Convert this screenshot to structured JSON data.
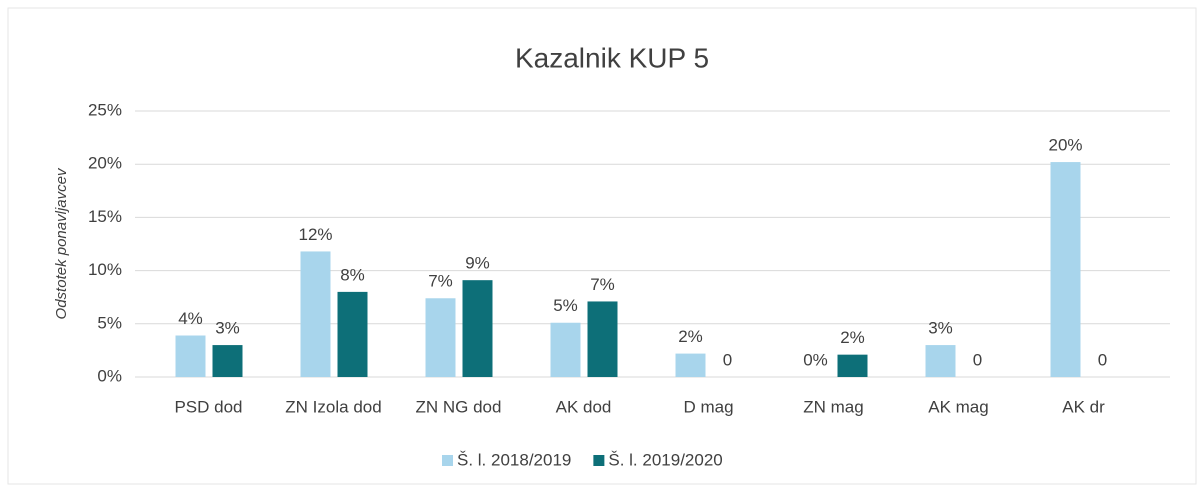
{
  "chart_data": {
    "type": "bar",
    "title": "Kazalnik KUP 5",
    "y_label": "Odstotek ponavljavcev",
    "categories": [
      "PSD dod",
      "ZN Izola dod",
      "ZN NG dod",
      "AK dod",
      "D mag",
      "ZN mag",
      "AK mag",
      "AK dr"
    ],
    "series": [
      {
        "name": "Š. l. 2018/2019",
        "color": "#a8d5ec",
        "values": [
          3.9,
          11.8,
          7.4,
          5.1,
          2.2,
          0,
          3.0,
          20.2
        ],
        "value_labels": [
          "4%",
          "12%",
          "7%",
          "5%",
          "2%",
          "0%",
          "3%",
          "20%"
        ]
      },
      {
        "name": "Š. l. 2019/2020",
        "color": "#0d6f78",
        "values": [
          3.0,
          8.0,
          9.1,
          7.1,
          0,
          2.1,
          0,
          0
        ],
        "value_labels": [
          "3%",
          "8%",
          "9%",
          "7%",
          "0",
          "2%",
          "0",
          "0"
        ]
      }
    ],
    "ylim": [
      0,
      25
    ],
    "yticks": [
      {
        "value": 0,
        "label": "0%"
      },
      {
        "value": 5,
        "label": "5%"
      },
      {
        "value": 10,
        "label": "10%"
      },
      {
        "value": 15,
        "label": "15%"
      },
      {
        "value": 20,
        "label": "20%"
      },
      {
        "value": 25,
        "label": "25%"
      }
    ],
    "grid": true,
    "legend": "bottom"
  }
}
